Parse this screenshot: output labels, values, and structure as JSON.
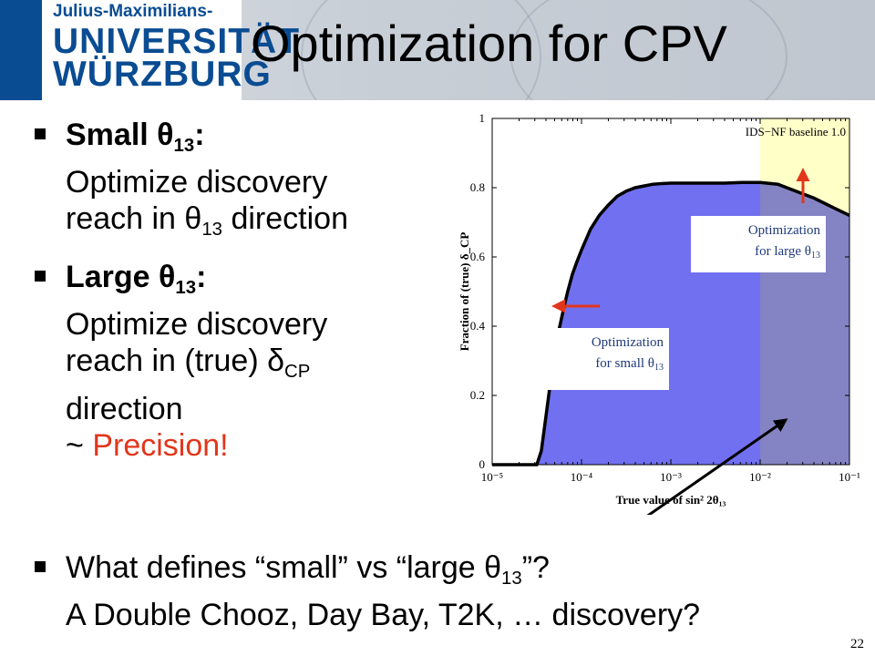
{
  "header": {
    "logo_top": "Julius-Maximilians-",
    "logo_uni": "UNIVERSITÄT",
    "logo_city": "WÜRZBURG",
    "brand_color": "#0a4c92"
  },
  "title": "Optimization for CPV",
  "bullets": [
    {
      "head": "Small θ",
      "head_sub": "13",
      "head_tail": ":",
      "lines": [
        "Optimize discovery",
        "reach in θ"
      ],
      "reach_sub": "13",
      "reach_tail": " direction"
    },
    {
      "head": "Large θ",
      "head_sub": "13",
      "head_tail": ":",
      "line1": "Optimize discovery",
      "line2": "reach in (true) δ",
      "line2_sub": "CP",
      "line3": "direction",
      "line4_pre": "~ ",
      "line4_red": "Precision!"
    }
  ],
  "question": {
    "l1_pre": "What defines “small” vs “large θ",
    "l1_sub": "13",
    "l1_post": "”?",
    "l2": "A Double Chooz, Day Bay, T2K, … discovery?"
  },
  "page_number": "22",
  "chart_data": {
    "type": "area",
    "legend_text": "IDS−NF baseline 1.0",
    "xlabel": "True value of sin² 2θ₁₃",
    "ylabel": "Fraction of (true) δ_CP",
    "xscale": "log",
    "xlim": [
      1e-05,
      0.1
    ],
    "ylim": [
      0,
      1
    ],
    "y_ticks": [
      "0",
      "0.2",
      "0.4",
      "0.6",
      "0.8",
      "1"
    ],
    "x_ticks": [
      "10⁻⁵",
      "10⁻⁴",
      "10⁻³",
      "10⁻²",
      "10⁻¹"
    ],
    "series": [
      {
        "x": [
          1e-05,
          3.16e-05,
          3.55e-05,
          4e-05,
          4.5e-05,
          5e-05,
          5.6e-05,
          6.3e-05,
          7e-05,
          7.9e-05,
          9e-05,
          0.0001,
          0.000126,
          0.000158,
          0.0002,
          0.00025,
          0.000316,
          0.0004,
          0.0005,
          0.00063,
          0.00079,
          0.001,
          0.0016,
          0.0025,
          0.004,
          0.0063,
          0.01,
          0.0158,
          0.025,
          0.04,
          0.063,
          0.1
        ],
        "y": [
          0,
          0,
          0.04,
          0.14,
          0.24,
          0.32,
          0.39,
          0.45,
          0.5,
          0.55,
          0.59,
          0.62,
          0.68,
          0.72,
          0.75,
          0.775,
          0.79,
          0.8,
          0.805,
          0.81,
          0.812,
          0.813,
          0.813,
          0.813,
          0.813,
          0.815,
          0.815,
          0.81,
          0.79,
          0.77,
          0.745,
          0.72
        ]
      }
    ],
    "colors": {
      "fill": "#7070f0",
      "highlight_fill": "#8484c4",
      "highlight_bg": "#ffffc8",
      "line": "#000000",
      "arrow": "#e2361b"
    },
    "highlight_from_x": 0.01,
    "annotations": [
      {
        "name": "large",
        "line1": "Optimization",
        "line2": "for large θ",
        "sub": "13"
      },
      {
        "name": "small",
        "line1": "Optimization",
        "line2": "for small θ",
        "sub": "13"
      }
    ]
  }
}
